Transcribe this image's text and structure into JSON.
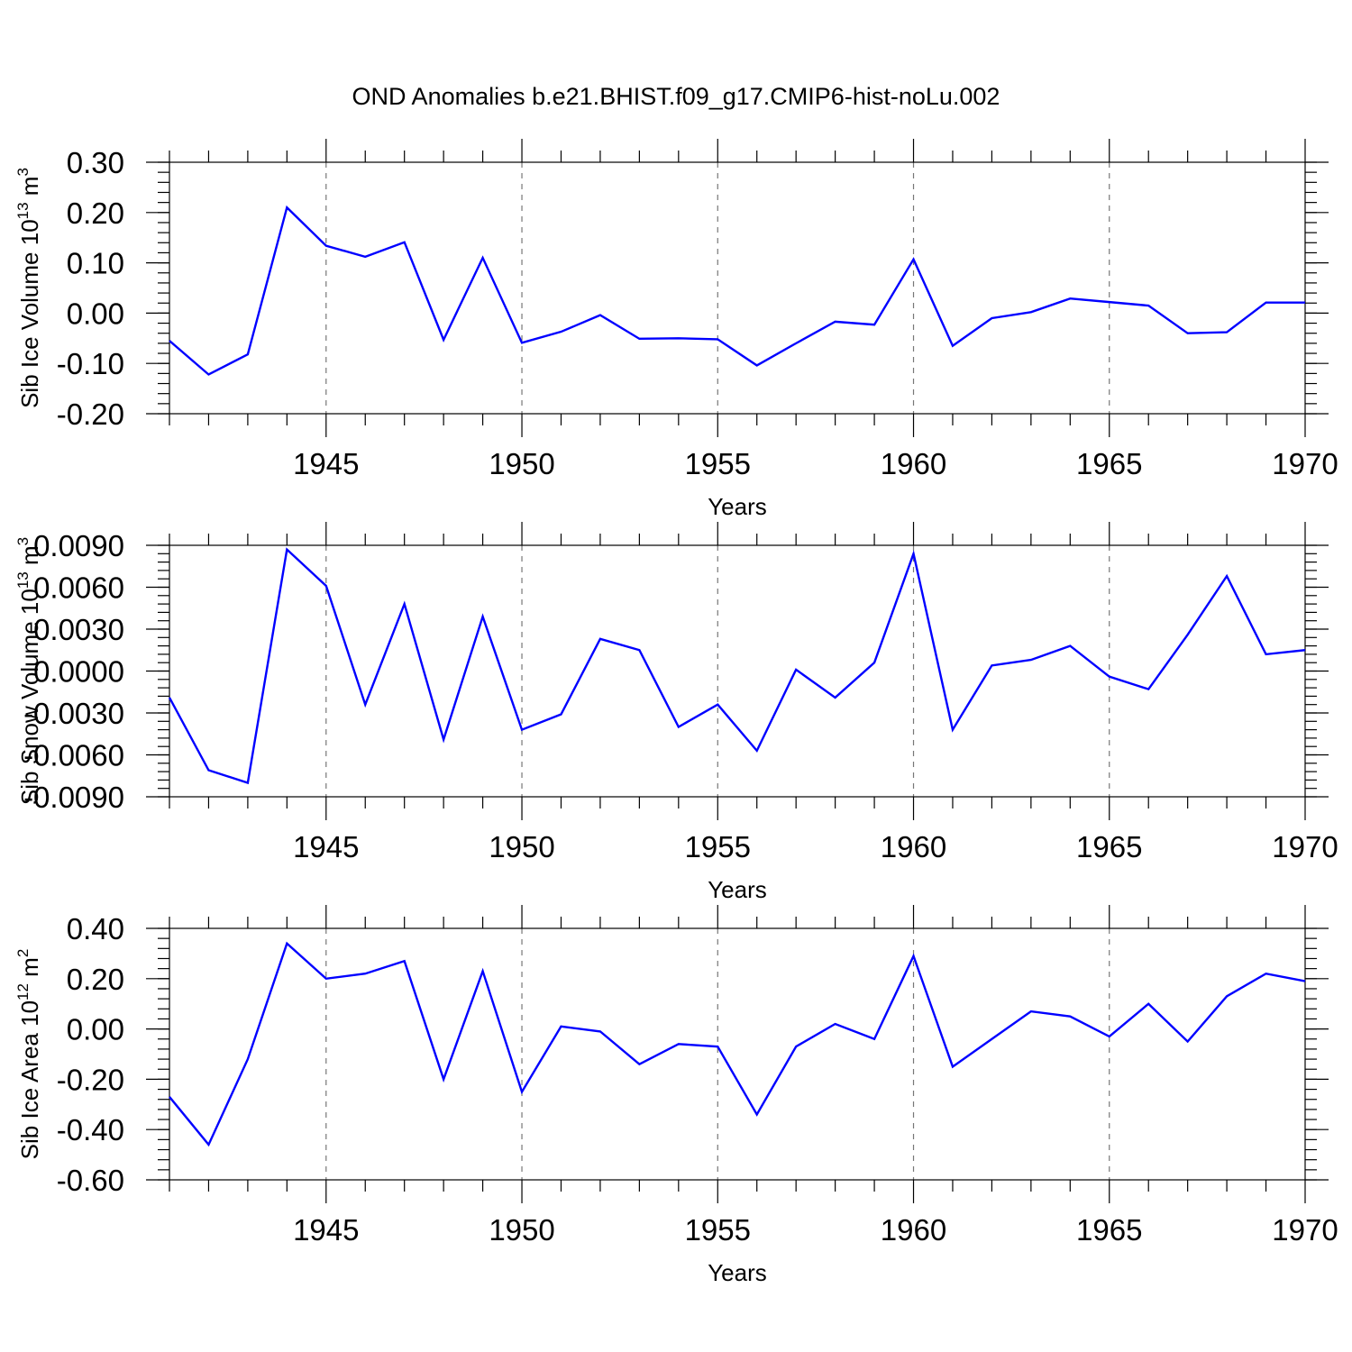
{
  "figure_title": "OND Anomalies b.e21.BHIST.f09_g17.CMIP6-hist-noLu.002",
  "colors": {
    "line": "#0000ff",
    "axis": "#000000",
    "grid": "#777777"
  },
  "chart_data": [
    {
      "type": "line",
      "title": "",
      "ylabel": "Sib Ice Volume 10^13 m^3",
      "ylabel_main": "Sib Ice Volume 10",
      "ylabel_exp1": "13",
      "ylabel_unit": " m",
      "ylabel_exp2": "3",
      "xlabel": "Years",
      "xlim": [
        1941,
        1970
      ],
      "ylim": [
        -0.2,
        0.3
      ],
      "xticks": [
        1945,
        1950,
        1955,
        1960,
        1965,
        1970
      ],
      "yticks": [
        -0.2,
        -0.1,
        0.0,
        0.1,
        0.2,
        0.3
      ],
      "ytick_labels": [
        "-0.20",
        "-0.10",
        "0.00",
        "0.10",
        "0.20",
        "0.30"
      ],
      "yminor_step": 0.02,
      "grid": "dashed vertical lines at major x ticks",
      "series": [
        {
          "name": "Sib Ice Volume",
          "x": [
            1941,
            1942,
            1943,
            1944,
            1945,
            1946,
            1947,
            1948,
            1949,
            1950,
            1951,
            1952,
            1953,
            1954,
            1955,
            1956,
            1957,
            1958,
            1959,
            1960,
            1961,
            1962,
            1963,
            1964,
            1965,
            1966,
            1967,
            1968,
            1969,
            1970
          ],
          "values": [
            -0.055,
            -0.122,
            -0.082,
            0.21,
            0.134,
            0.112,
            0.141,
            -0.053,
            0.11,
            -0.059,
            -0.037,
            -0.004,
            -0.051,
            -0.05,
            -0.052,
            -0.104,
            -0.06,
            -0.017,
            -0.023,
            0.107,
            -0.065,
            -0.01,
            0.002,
            0.029,
            0.022,
            0.015,
            -0.04,
            -0.038,
            0.021,
            0.021
          ]
        }
      ]
    },
    {
      "type": "line",
      "title": "",
      "ylabel": "Sib Snow Volume 10^13 m^3",
      "ylabel_main": "Sib Snow Volume 10",
      "ylabel_exp1": "13",
      "ylabel_unit": " m",
      "ylabel_exp2": "3",
      "xlabel": "Years",
      "xlim": [
        1941,
        1970
      ],
      "ylim": [
        -0.009,
        0.009
      ],
      "xticks": [
        1945,
        1950,
        1955,
        1960,
        1965,
        1970
      ],
      "yticks": [
        -0.009,
        -0.006,
        -0.003,
        0.0,
        0.003,
        0.006,
        0.009
      ],
      "ytick_labels": [
        "-0.0090",
        "-0.0060",
        "-0.0030",
        "0.0000",
        "0.0030",
        "0.0060",
        "0.0090"
      ],
      "yminor_step": 0.0006,
      "grid": "dashed vertical lines at major x ticks",
      "series": [
        {
          "name": "Sib Snow Volume",
          "x": [
            1941,
            1942,
            1943,
            1944,
            1945,
            1946,
            1947,
            1948,
            1949,
            1950,
            1951,
            1952,
            1953,
            1954,
            1955,
            1956,
            1957,
            1958,
            1959,
            1960,
            1961,
            1962,
            1963,
            1964,
            1965,
            1966,
            1967,
            1968,
            1969,
            1970
          ],
          "values": [
            -0.0019,
            -0.0071,
            -0.008,
            0.0087,
            0.0061,
            -0.0024,
            0.0048,
            -0.0049,
            0.0039,
            -0.0042,
            -0.0031,
            0.0023,
            0.0015,
            -0.004,
            -0.0024,
            -0.0057,
            0.0001,
            -0.0019,
            0.0006,
            0.0084,
            -0.0042,
            0.0004,
            0.0008,
            0.0018,
            -0.0004,
            -0.0013,
            0.0026,
            0.0068,
            0.0012,
            0.0015
          ]
        }
      ]
    },
    {
      "type": "line",
      "title": "",
      "ylabel": "Sib Ice Area 10^12 m^2",
      "ylabel_main": "Sib Ice Area 10",
      "ylabel_exp1": "12",
      "ylabel_unit": " m",
      "ylabel_exp2": "2",
      "xlabel": "Years",
      "xlim": [
        1941,
        1970
      ],
      "ylim": [
        -0.6,
        0.4
      ],
      "xticks": [
        1945,
        1950,
        1955,
        1960,
        1965,
        1970
      ],
      "yticks": [
        -0.6,
        -0.4,
        -0.2,
        0.0,
        0.2,
        0.4
      ],
      "ytick_labels": [
        "-0.60",
        "-0.40",
        "-0.20",
        "0.00",
        "0.20",
        "0.40"
      ],
      "yminor_step": 0.04,
      "grid": "dashed vertical lines at major x ticks",
      "series": [
        {
          "name": "Sib Ice Area",
          "x": [
            1941,
            1942,
            1943,
            1944,
            1945,
            1946,
            1947,
            1948,
            1949,
            1950,
            1951,
            1952,
            1953,
            1954,
            1955,
            1956,
            1957,
            1958,
            1959,
            1960,
            1961,
            1962,
            1963,
            1964,
            1965,
            1966,
            1967,
            1968,
            1969,
            1970
          ],
          "values": [
            -0.27,
            -0.46,
            -0.12,
            0.34,
            0.2,
            0.22,
            0.27,
            -0.2,
            0.23,
            -0.25,
            0.01,
            -0.01,
            -0.14,
            -0.06,
            -0.07,
            -0.34,
            -0.07,
            0.02,
            -0.04,
            0.29,
            -0.15,
            -0.04,
            0.07,
            0.05,
            -0.03,
            0.1,
            -0.05,
            0.13,
            0.22,
            0.19
          ]
        }
      ]
    }
  ]
}
